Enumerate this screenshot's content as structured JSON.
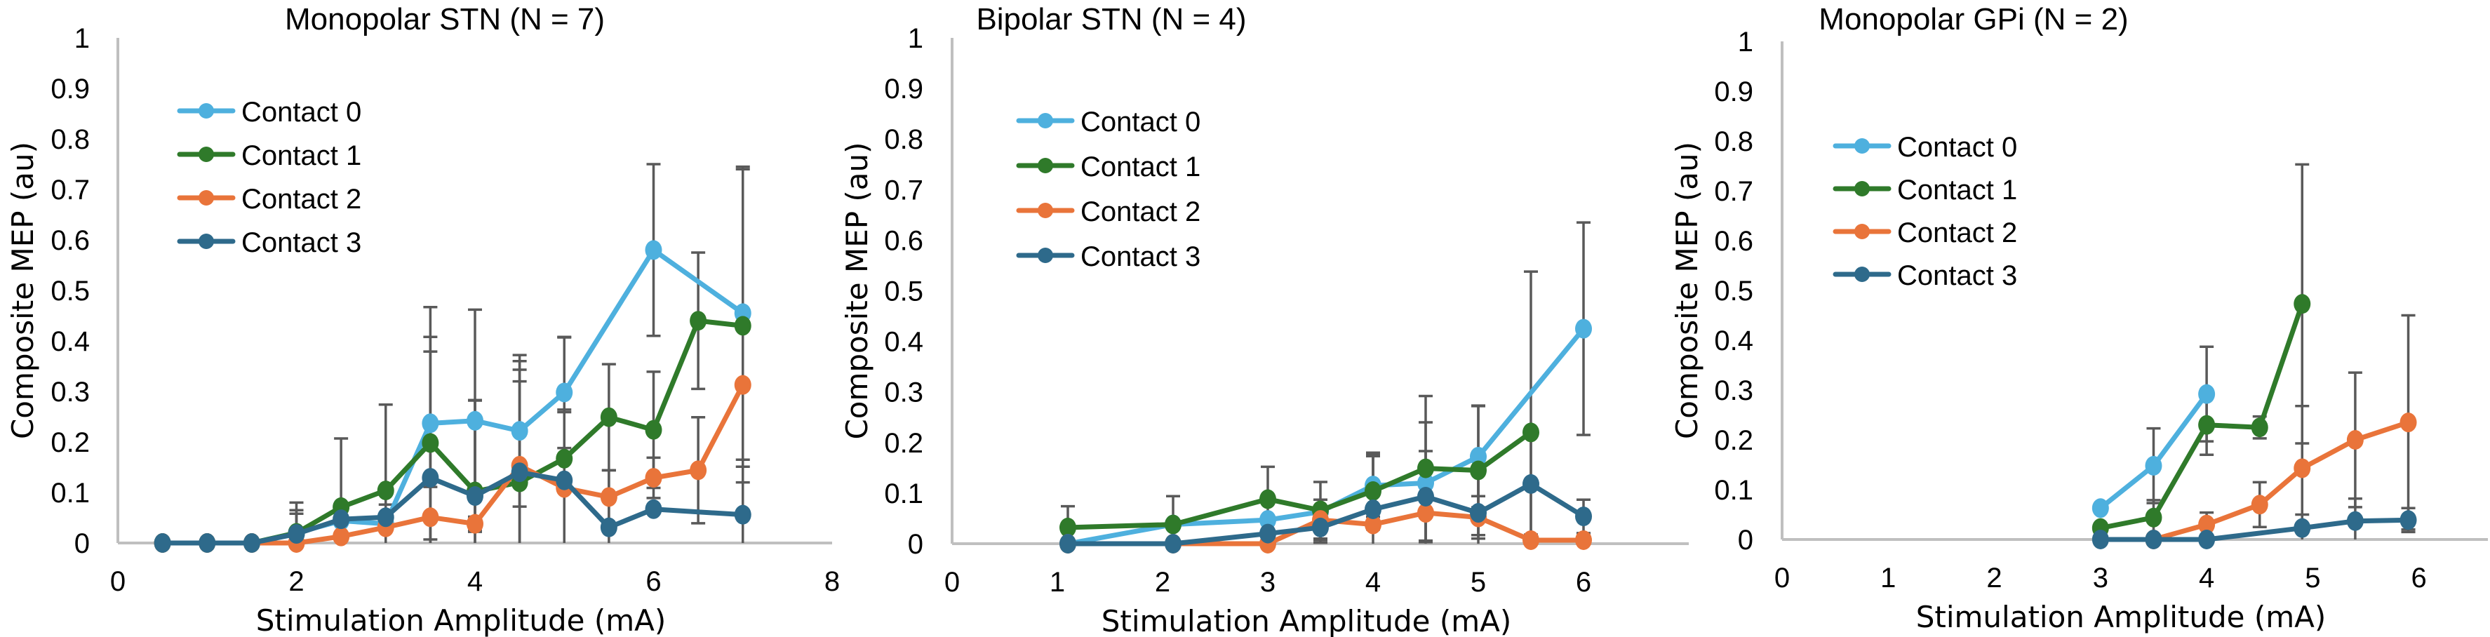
{
  "figure": {
    "ylabel": "Composite MEP (au)",
    "xlabel": "Stimulation Amplitude (mA)"
  },
  "legend_labels": [
    "Contact 0",
    "Contact 1",
    "Contact 2",
    "Contact 3"
  ],
  "colors": {
    "contact_0": "#4eb0de",
    "contact_1": "#2f7a2a",
    "contact_2": "#e9743a",
    "contact_3": "#2e6a8b",
    "axis": "#bfbfbf",
    "error_bar": "#595959"
  },
  "chart_data": [
    {
      "type": "line",
      "title": "Monopolar STN (N = 7)",
      "xlabel": "Stimulation Amplitude (mA)",
      "ylabel": "Composite MEP (au)",
      "xlim": [
        0,
        8
      ],
      "ylim": [
        0,
        1
      ],
      "xticks": [
        0,
        2,
        4,
        6,
        8
      ],
      "yticks": [
        0,
        0.1,
        0.2,
        0.3,
        0.4,
        0.5,
        0.6,
        0.7,
        0.8,
        0.9,
        1
      ],
      "ytick_labels": [
        "0",
        "0.1",
        "0.2",
        "0.3",
        "0.4",
        "0.5",
        "0.6",
        "0.7",
        "0.8",
        "0.9",
        "1"
      ],
      "grid": false,
      "legend_position": "top-left",
      "series": [
        {
          "name": "Contact 0",
          "x": [
            0.5,
            1,
            1.5,
            2,
            2.5,
            3,
            3.5,
            4,
            4.5,
            5,
            6,
            7
          ],
          "y": [
            0,
            0,
            0,
            0.02,
            0.044,
            0.038,
            0.237,
            0.242,
            0.222,
            0.298,
            0.58,
            0.455
          ],
          "err": [
            0,
            0,
            0,
            0.06,
            0,
            0,
            0.23,
            0.22,
            0.15,
            0.11,
            0.17,
            0.29
          ]
        },
        {
          "name": "Contact 1",
          "x": [
            0.5,
            1,
            1.5,
            2,
            2.5,
            3,
            3.5,
            4,
            4.5,
            5,
            5.5,
            6,
            6.5,
            7
          ],
          "y": [
            0,
            0,
            0,
            0.02,
            0.071,
            0.104,
            0.198,
            0.102,
            0.12,
            0.167,
            0.249,
            0.224,
            0.44,
            0.43
          ],
          "err": [
            0,
            0,
            0,
            0.045,
            0.136,
            0.17,
            0.21,
            0.18,
            0.2,
            0.24,
            0.105,
            0.115,
            0.135,
            0.31
          ]
        },
        {
          "name": "Contact 2",
          "x": [
            0.5,
            1,
            1.5,
            2,
            2.5,
            3,
            3.5,
            4,
            4.5,
            5,
            5.5,
            6,
            6.5,
            7
          ],
          "y": [
            0,
            0,
            0,
            0,
            0.013,
            0.031,
            0.051,
            0.038,
            0.153,
            0.109,
            0.091,
            0.129,
            0.144,
            0.313
          ],
          "err": [
            0,
            0,
            0,
            0,
            0,
            0,
            0.06,
            0.014,
            0.19,
            0.15,
            0.053,
            0.04,
            0.105,
            0
          ]
        },
        {
          "name": "Contact 3",
          "x": [
            0.5,
            1,
            1.5,
            2,
            2.5,
            3,
            3.5,
            4,
            4.5,
            5,
            5.5,
            6,
            7
          ],
          "y": [
            0,
            0,
            0,
            0.018,
            0.047,
            0.051,
            0.129,
            0.093,
            0.14,
            0.124,
            0.031,
            0.067,
            0.056
          ],
          "err": [
            0,
            0,
            0,
            0.04,
            0,
            0.025,
            0.25,
            0.19,
            0.22,
            0.14,
            0.113,
            0,
            0.095
          ]
        }
      ]
    },
    {
      "type": "line",
      "title": "Bipolar STN (N = 4)",
      "xlabel": "Stimulation Amplitude (mA)",
      "ylabel": "Composite MEP (au)",
      "xlim": [
        0,
        7
      ],
      "ylim": [
        0,
        1
      ],
      "xticks": [
        0,
        1,
        2,
        3,
        4,
        5,
        6
      ],
      "yticks": [
        0,
        0.1,
        0.2,
        0.3,
        0.4,
        0.5,
        0.6,
        0.7,
        0.8,
        0.9,
        1
      ],
      "ytick_labels": [
        "0",
        "0.1",
        "0.2",
        "0.3",
        "0.4",
        "0.5",
        "0.6",
        "0.7",
        "0.8",
        "0.9",
        "1"
      ],
      "grid": false,
      "legend_position": "top-left",
      "series": [
        {
          "name": "Contact 0",
          "x": [
            1.1,
            2.1,
            3,
            3.5,
            4,
            4.5,
            5,
            6
          ],
          "y": [
            0,
            0.038,
            0.047,
            0.063,
            0.115,
            0.12,
            0.172,
            0.425
          ],
          "err": [
            0,
            0,
            0,
            0,
            0.062,
            0.12,
            0.1,
            0.21
          ]
        },
        {
          "name": "Contact 1",
          "x": [
            1.1,
            2.1,
            3,
            3.5,
            4,
            4.5,
            5,
            5.5
          ],
          "y": [
            0.032,
            0.038,
            0.088,
            0.066,
            0.104,
            0.149,
            0.145,
            0.22
          ],
          "err": [
            0.042,
            0.056,
            0.064,
            0.056,
            0.076,
            0.143,
            0.128,
            0.318
          ]
        },
        {
          "name": "Contact 2",
          "x": [
            1.1,
            2.1,
            3,
            3.5,
            4,
            4.5,
            5,
            5.5,
            6
          ],
          "y": [
            0,
            0,
            0,
            0.047,
            0.038,
            0.061,
            0.052,
            0.007,
            0.007
          ],
          "err": [
            0,
            0,
            0,
            0.04,
            0,
            0.056,
            0.042,
            0,
            0
          ]
        },
        {
          "name": "Contact 3",
          "x": [
            1.1,
            2.1,
            3,
            3.5,
            4,
            4.5,
            5,
            5.5,
            6
          ],
          "y": [
            0,
            0,
            0.02,
            0.032,
            0.068,
            0.093,
            0.061,
            0.118,
            0.054
          ],
          "err": [
            0,
            0,
            0,
            0.03,
            0.105,
            0.09,
            0.12,
            0.1,
            0.033
          ]
        }
      ]
    },
    {
      "type": "line",
      "title": "Monopolar GPi (N = 2)",
      "xlabel": "Stimulation Amplitude (mA)",
      "ylabel": "Composite MEP (au)",
      "xlim": [
        0,
        6.65
      ],
      "ylim": [
        0,
        1
      ],
      "xticks": [
        0,
        1,
        2,
        3,
        4,
        5,
        6
      ],
      "yticks": [
        0,
        0.1,
        0.2,
        0.3,
        0.4,
        0.5,
        0.6,
        0.7,
        0.8,
        0.9,
        1
      ],
      "ytick_labels": [
        "0",
        "0.1",
        "0.2",
        "0.3",
        "0.4",
        "0.5",
        "0.6",
        "0.7",
        "0.8",
        "0.9",
        "1"
      ],
      "grid": false,
      "legend_position": "top-left",
      "series": [
        {
          "name": "Contact 0",
          "x": [
            3,
            3.5,
            4
          ],
          "y": [
            0.063,
            0.148,
            0.292
          ],
          "err": [
            0,
            0.075,
            0.095
          ]
        },
        {
          "name": "Contact 1",
          "x": [
            3,
            3.5,
            4,
            4.5,
            4.9
          ],
          "y": [
            0.023,
            0.044,
            0.23,
            0.225,
            0.473
          ],
          "err": [
            0,
            0.035,
            0.06,
            0.022,
            0.28
          ]
        },
        {
          "name": "Contact 2",
          "x": [
            3.5,
            4,
            4.5,
            4.9,
            5.4,
            5.9
          ],
          "y": [
            0,
            0.03,
            0.07,
            0.143,
            0.2,
            0.235
          ],
          "err": [
            0,
            0.024,
            0.045,
            0.125,
            0.135,
            0.215
          ]
        },
        {
          "name": "Contact 3",
          "x": [
            3,
            3.5,
            4,
            4.9,
            5.4,
            5.9
          ],
          "y": [
            0,
            0,
            0,
            0.023,
            0.037,
            0.039
          ],
          "err": [
            0,
            0,
            0,
            0.027,
            0.045,
            0.024
          ]
        }
      ]
    }
  ]
}
